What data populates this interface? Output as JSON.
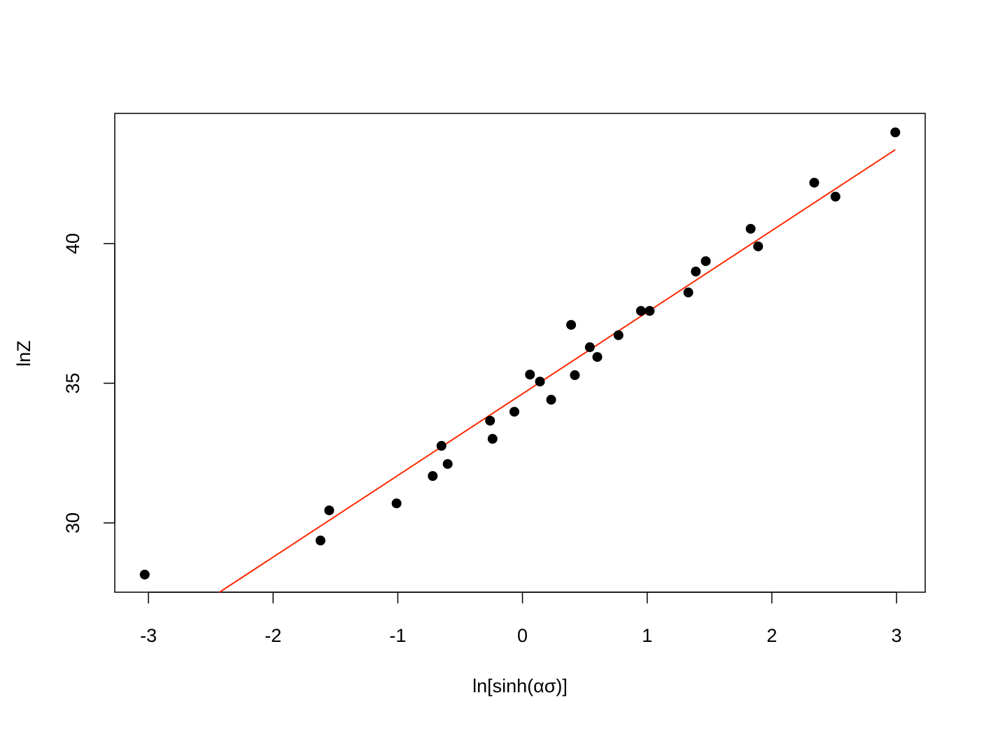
{
  "chart_data": {
    "type": "scatter",
    "x_label": "ln[sinh(ασ)]",
    "y_label": "lnZ",
    "series": [
      {
        "color": "#000000",
        "x": [
          -3.03,
          -1.62,
          -1.55,
          -1.01,
          -0.72,
          -0.65,
          -0.6,
          -0.26,
          -0.24,
          -0.065,
          0.06,
          0.14,
          0.23,
          0.39,
          0.42,
          0.54,
          0.6,
          0.77,
          0.95,
          1.02,
          1.33,
          1.39,
          1.47,
          1.83,
          1.89,
          2.34,
          2.51,
          2.99
        ],
        "values": [
          28.15,
          29.37,
          30.45,
          30.7,
          31.68,
          32.76,
          32.11,
          33.66,
          33.01,
          33.98,
          35.31,
          35.06,
          34.41,
          37.09,
          35.29,
          36.29,
          35.94,
          36.72,
          37.59,
          37.59,
          38.25,
          39.0,
          39.37,
          40.53,
          39.9,
          42.18,
          41.68,
          43.98
        ]
      }
    ],
    "fit_line": {
      "color": "#ff2a00",
      "x": [
        -2.43,
        2.99
      ],
      "values": [
        27.52,
        43.36
      ]
    },
    "xlim": [
      -3.27,
      3.23
    ],
    "ylim": [
      27.52,
      44.66
    ],
    "xticks": [
      -3,
      -2,
      -1,
      0,
      1,
      2,
      3
    ],
    "yticks": [
      30,
      35,
      40
    ],
    "grid": false
  }
}
